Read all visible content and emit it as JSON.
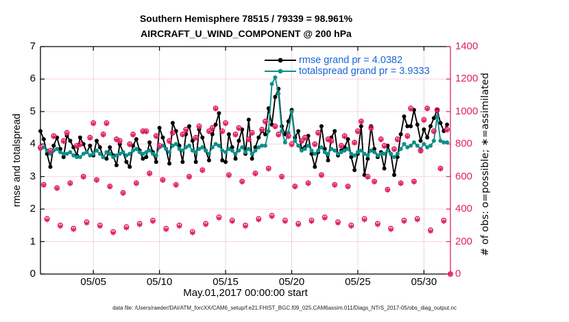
{
  "figure": {
    "title_line1": "Southern Hemisphere 78515 / 79339 = 98.961%",
    "title_line2": "AIRCRAFT_U_WIND_COMPONENT @ 200 hPa",
    "xlabel": "May.01,2017 00:00:00 start",
    "ylabel_left": "rmse and totalspread",
    "ylabel_right": "# of obs: o=possible; ∗=assimilated",
    "footer": "data file: /Users/raeder/DAI/ATM_forcXX/CAM6_setup/f.e21.FHIST_BGC.f09_025.CAM6assim.011/Diags_NTrS_2017-05/obs_diag_output.nc"
  },
  "legend": {
    "rmse_label": "rmse grand pr = 4.0382",
    "totalspread_label": "totalspread grand pr = 3.9333",
    "text_color": "#1565d8"
  },
  "colors": {
    "rmse": "#000000",
    "totalspread": "#0e8f88",
    "obs": "#df1f63",
    "grid_horizontal": "rgba(224,32,95,0.20)",
    "grid_vertical": "rgba(150,120,130,0.28)",
    "axis_left": "#000000",
    "axis_right": "#df1f63"
  },
  "chart_data": {
    "type": "line",
    "title": "Southern Hemisphere 78515 / 79339 = 98.961%",
    "subtitle": "AIRCRAFT_U_WIND_COMPONENT @ 200 hPa",
    "xlabel": "May.01,2017 00:00:00 start",
    "x_unit": "days since 2017-05-01 00:00Z",
    "bin_hours": 6,
    "x_range_days": [
      0,
      31
    ],
    "x_tick_positions_days": [
      4,
      9,
      14,
      19,
      24,
      29
    ],
    "x_tick_labels": [
      "05/05",
      "05/10",
      "05/15",
      "05/20",
      "05/25",
      "05/30"
    ],
    "y_left": {
      "label": "rmse and totalspread",
      "min": 0,
      "max": 7,
      "ticks": [
        0,
        1,
        2,
        3,
        4,
        5,
        6,
        7
      ]
    },
    "y_right": {
      "label": "# of obs: o=possible; ∗=assimilated",
      "min": 0,
      "max": 1400,
      "ticks": [
        0,
        200,
        400,
        600,
        800,
        1000,
        1200,
        1400
      ]
    },
    "grid": true,
    "legend_position": "top-right-inside",
    "stats": {
      "possible_total": 79339,
      "assimilated_total": 78515,
      "assimilated_percent": 98.961,
      "rmse_grand_pr": 4.0382,
      "totalspread_grand_pr": 3.9333
    },
    "series": [
      {
        "name": "rmse",
        "marker": "o-filled",
        "axis": "left",
        "values": [
          4.4,
          4.15,
          3.7,
          3.3,
          3.95,
          4.2,
          3.85,
          3.6,
          4.25,
          4.1,
          3.9,
          3.65,
          4.2,
          4.0,
          3.75,
          3.95,
          3.65,
          4.1,
          3.9,
          3.6,
          3.55,
          3.9,
          3.65,
          3.35,
          4.0,
          3.75,
          3.45,
          3.3,
          3.95,
          4.15,
          3.8,
          3.55,
          3.6,
          4.05,
          3.75,
          3.45,
          4.5,
          4.2,
          3.85,
          3.4,
          4.65,
          4.4,
          3.95,
          3.45,
          4.3,
          4.55,
          4.1,
          3.45,
          4.45,
          4.2,
          3.8,
          3.5,
          4.3,
          4.6,
          4.95,
          3.5,
          3.45,
          4.3,
          3.9,
          3.55,
          4.1,
          4.45,
          3.7,
          4.75,
          3.55,
          3.9,
          4.2,
          4.4,
          4.3,
          5.1,
          4.6,
          5.45,
          5.7,
          4.55,
          4.3,
          4.7,
          5.05,
          4.2,
          4.4,
          3.85,
          3.9,
          4.25,
          3.7,
          3.3,
          3.75,
          4.55,
          3.85,
          3.5,
          4.2,
          4.4,
          3.65,
          3.8,
          3.9,
          4.15,
          3.6,
          3.2,
          3.7,
          4.55,
          3.05,
          3.55,
          4.55,
          3.85,
          3.6,
          3.75,
          3.25,
          3.95,
          3.7,
          3.05,
          3.6,
          4.3,
          4.85,
          4.55,
          4.55,
          5.05,
          4.6,
          4.1,
          4.45,
          4.2,
          4.55,
          4.8,
          5.05,
          4.65,
          4.4,
          4.6
        ]
      },
      {
        "name": "totalspread",
        "marker": "o-filled",
        "axis": "left",
        "values": [
          3.85,
          3.9,
          3.8,
          3.7,
          3.8,
          3.85,
          3.75,
          3.7,
          3.7,
          3.75,
          3.65,
          3.6,
          3.6,
          3.7,
          3.75,
          3.65,
          3.7,
          3.8,
          3.7,
          3.6,
          3.75,
          3.7,
          3.6,
          3.65,
          3.7,
          3.75,
          3.65,
          3.7,
          3.8,
          3.85,
          3.75,
          3.7,
          3.75,
          3.8,
          3.7,
          3.65,
          3.9,
          3.95,
          3.85,
          3.75,
          3.95,
          4.0,
          3.85,
          3.8,
          3.9,
          3.95,
          3.8,
          3.75,
          3.85,
          3.9,
          3.8,
          3.7,
          3.9,
          4.0,
          3.95,
          3.8,
          3.75,
          3.85,
          3.8,
          3.7,
          3.8,
          3.9,
          3.75,
          3.85,
          3.7,
          3.8,
          3.9,
          3.95,
          3.95,
          4.4,
          5.85,
          6.05,
          5.55,
          4.4,
          4.05,
          4.35,
          5.0,
          4.1,
          3.95,
          3.8,
          3.85,
          3.95,
          3.8,
          3.7,
          3.8,
          3.9,
          3.75,
          3.7,
          3.85,
          3.8,
          3.7,
          3.75,
          3.8,
          3.85,
          3.7,
          3.65,
          3.75,
          3.8,
          3.7,
          3.65,
          3.8,
          3.75,
          3.65,
          3.7,
          3.7,
          3.8,
          3.7,
          3.6,
          3.7,
          3.85,
          4.0,
          3.9,
          3.95,
          4.05,
          3.95,
          3.85,
          4.0,
          3.9,
          3.95,
          4.1,
          4.85,
          4.1,
          4.05,
          4.05
        ]
      },
      {
        "name": "obs_possible",
        "marker": "o-outline",
        "axis": "right",
        "values": [
          780,
          550,
          340,
          760,
          850,
          530,
          300,
          820,
          870,
          560,
          280,
          790,
          800,
          600,
          320,
          840,
          930,
          580,
          300,
          860,
          930,
          540,
          260,
          830,
          820,
          500,
          290,
          800,
          860,
          560,
          310,
          880,
          880,
          620,
          330,
          850,
          790,
          580,
          280,
          820,
          870,
          550,
          300,
          860,
          890,
          600,
          260,
          840,
          910,
          640,
          310,
          880,
          900,
          1020,
          350,
          880,
          930,
          610,
          330,
          860,
          900,
          570,
          300,
          830,
          870,
          620,
          340,
          890,
          940,
          650,
          360,
          910,
          860,
          600,
          330,
          850,
          800,
          540,
          310,
          820,
          840,
          560,
          330,
          800,
          870,
          610,
          350,
          830,
          820,
          550,
          320,
          790,
          850,
          540,
          300,
          810,
          880,
          940,
          340,
          600,
          900,
          570,
          310,
          830,
          790,
          520,
          280,
          770,
          830,
          560,
          330,
          850,
          1020,
          570,
          340,
          760,
          950,
          1020,
          270,
          880,
          1010,
          650,
          330,
          890,
          0
        ]
      },
      {
        "name": "obs_assimilated",
        "marker": "asterisk",
        "axis": "right",
        "values": [
          775,
          547,
          333,
          756,
          845,
          527,
          293,
          816,
          865,
          557,
          273,
          786,
          795,
          597,
          313,
          836,
          925,
          577,
          293,
          856,
          925,
          537,
          253,
          826,
          815,
          497,
          283,
          796,
          855,
          557,
          303,
          876,
          875,
          617,
          323,
          846,
          785,
          577,
          273,
          816,
          865,
          547,
          293,
          856,
          885,
          597,
          253,
          836,
          905,
          637,
          303,
          876,
          895,
          1017,
          343,
          876,
          925,
          607,
          323,
          856,
          895,
          567,
          293,
          826,
          865,
          617,
          333,
          886,
          935,
          647,
          353,
          906,
          855,
          597,
          323,
          846,
          795,
          537,
          303,
          816,
          835,
          557,
          323,
          796,
          865,
          607,
          343,
          826,
          815,
          547,
          313,
          786,
          845,
          537,
          293,
          806,
          875,
          937,
          333,
          596,
          895,
          567,
          303,
          826,
          785,
          517,
          273,
          766,
          825,
          557,
          323,
          846,
          1015,
          567,
          333,
          756,
          945,
          1017,
          263,
          876,
          1005,
          647,
          323,
          886,
          0
        ]
      }
    ]
  }
}
